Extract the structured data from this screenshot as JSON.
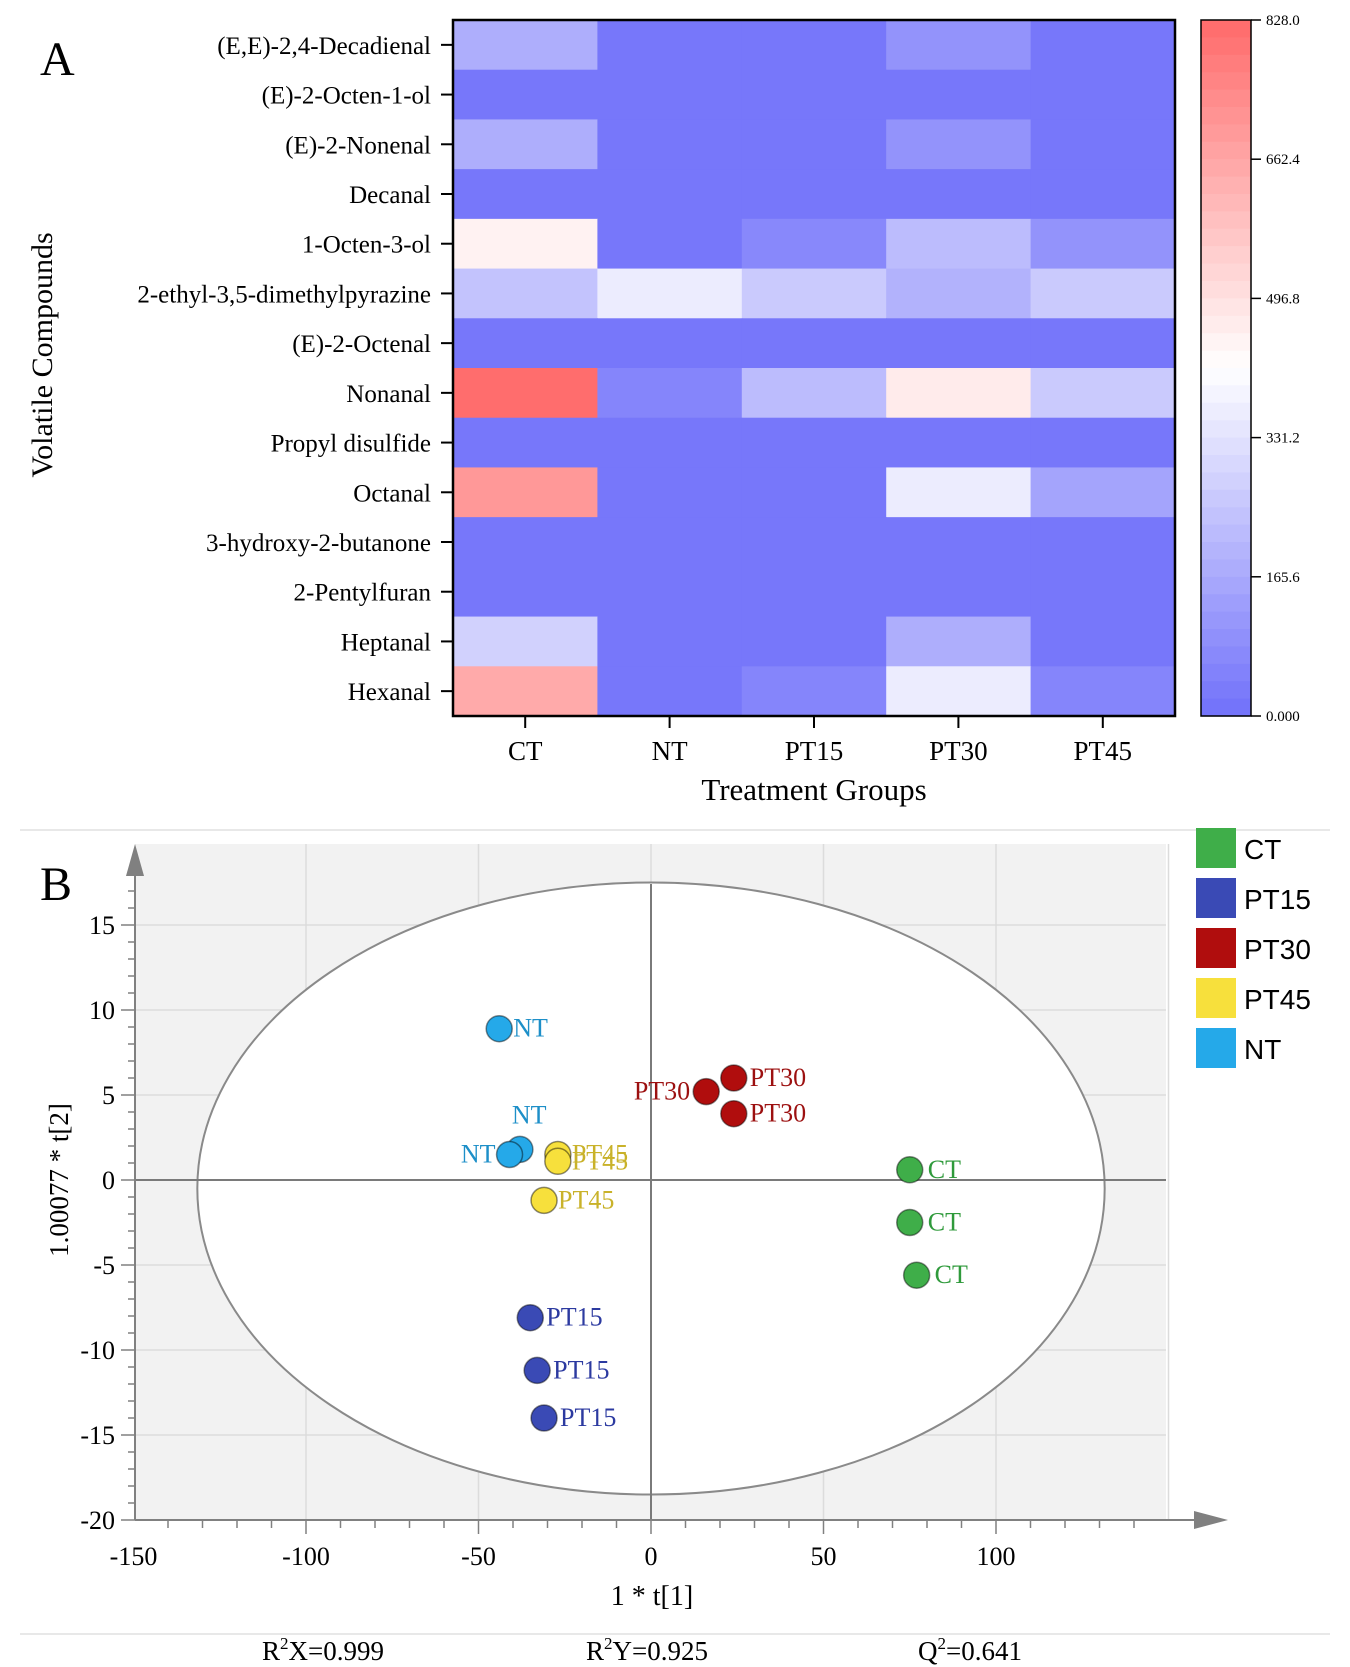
{
  "chart_data": [
    {
      "type": "heatmap",
      "panel_label": "A",
      "xlabel": "Treatment Groups",
      "ylabel": "Volatile Compounds",
      "x_categories": [
        "CT",
        "NT",
        "PT15",
        "PT30",
        "PT45"
      ],
      "y_categories": [
        "(E,E)-2,4-Decadienal",
        "(E)-2-Octen-1-ol",
        "(E)-2-Nonenal",
        "Decanal",
        "1-Octen-3-ol",
        "2-ethyl-3,5-dimethylpyrazine",
        "(E)-2-Octenal",
        "Nonanal",
        "Propyl disulfide",
        "Octanal",
        "3-hydroxy-2-butanone",
        "2-Pentylfuran",
        "Heptanal",
        "Hexanal"
      ],
      "values": [
        [
          180,
          20,
          20,
          100,
          20
        ],
        [
          20,
          20,
          20,
          20,
          20
        ],
        [
          180,
          20,
          20,
          100,
          20
        ],
        [
          20,
          20,
          20,
          20,
          20
        ],
        [
          450,
          20,
          70,
          220,
          100
        ],
        [
          240,
          360,
          260,
          190,
          260
        ],
        [
          20,
          20,
          20,
          20,
          20
        ],
        [
          820,
          60,
          220,
          470,
          260
        ],
        [
          20,
          20,
          20,
          20,
          20
        ],
        [
          700,
          20,
          20,
          360,
          150
        ],
        [
          20,
          20,
          20,
          20,
          20
        ],
        [
          20,
          20,
          20,
          20,
          20
        ],
        [
          280,
          20,
          20,
          180,
          20
        ],
        [
          650,
          20,
          60,
          360,
          60
        ]
      ],
      "colorbar": {
        "min": 0,
        "max": 828,
        "ticks": [
          "828.0",
          "662.4",
          "496.8",
          "331.2",
          "165.6",
          "0.000"
        ],
        "colors": {
          "low": "#7070fa",
          "mid": "#ffffff",
          "high": "#ff6a6a"
        }
      }
    },
    {
      "type": "scatter",
      "panel_label": "B",
      "xlabel": "1 * t[1]",
      "ylabel": "1.00077 * t[2]",
      "xlim": [
        -150,
        150
      ],
      "ylim": [
        -20,
        20
      ],
      "x_ticks": [
        -150,
        -100,
        -50,
        0,
        50,
        100
      ],
      "y_ticks": [
        15,
        10,
        5,
        0,
        -5,
        -10,
        -15,
        -20
      ],
      "ellipse": {
        "cx": 0,
        "cy": -0.5,
        "rx": 131.5,
        "ry": 18
      },
      "legend": {
        "position": "right"
      },
      "series": [
        {
          "name": "CT",
          "color": "#3fae49",
          "points": [
            {
              "x": 75,
              "y": 0.6,
              "label": "CT"
            },
            {
              "x": 75,
              "y": -2.5,
              "label": "CT"
            },
            {
              "x": 77,
              "y": -5.6,
              "label": "CT"
            }
          ]
        },
        {
          "name": "PT15",
          "color": "#3a4ab5",
          "points": [
            {
              "x": -35,
              "y": -8.1,
              "label": "PT15"
            },
            {
              "x": -33,
              "y": -11.2,
              "label": "PT15"
            },
            {
              "x": -31,
              "y": -14,
              "label": "PT15"
            }
          ]
        },
        {
          "name": "PT30",
          "color": "#b00d0d",
          "points": [
            {
              "x": 16,
              "y": 5.2,
              "label": "PT30"
            },
            {
              "x": 24,
              "y": 6,
              "label": "PT30"
            },
            {
              "x": 24,
              "y": 3.9,
              "label": "PT30"
            }
          ]
        },
        {
          "name": "PT45",
          "color": "#f7e03c",
          "points": [
            {
              "x": -27,
              "y": 1.5,
              "label": "PT45"
            },
            {
              "x": -27,
              "y": 1.1,
              "label": "PT45"
            },
            {
              "x": -31,
              "y": -1.2,
              "label": "PT45"
            }
          ]
        },
        {
          "name": "NT",
          "color": "#25a9e9",
          "points": [
            {
              "x": -44,
              "y": 8.9,
              "label": "NT"
            },
            {
              "x": -38,
              "y": 1.8,
              "label": "NT"
            },
            {
              "x": -41,
              "y": 1.5,
              "label": "NT"
            }
          ]
        }
      ],
      "stats": [
        "R2X=0.999",
        "R2Y=0.925",
        "Q2=0.641"
      ]
    }
  ]
}
